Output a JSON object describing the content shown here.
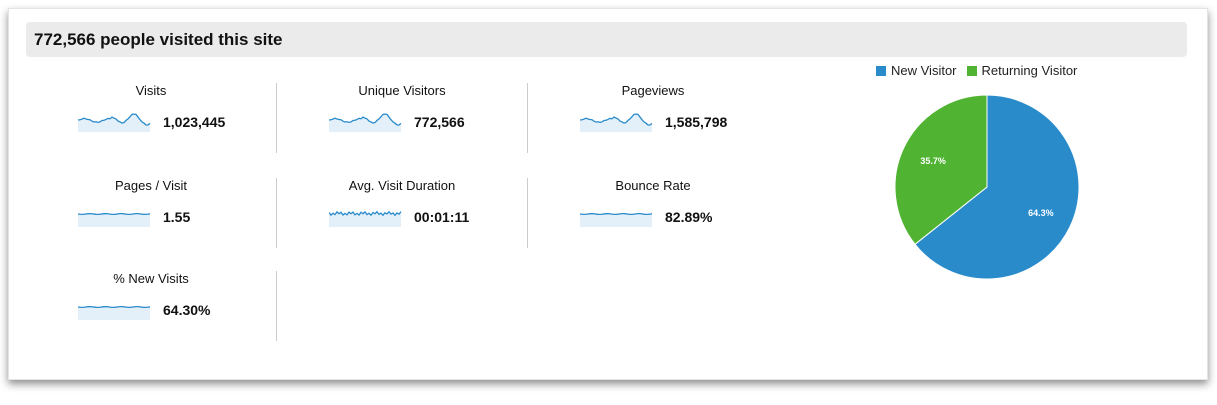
{
  "header": {
    "title": "772,566 people visited this site"
  },
  "metrics": [
    {
      "label": "Visits",
      "value": "1,023,445",
      "trend": "wavy"
    },
    {
      "label": "Unique Visitors",
      "value": "772,566",
      "trend": "wavy"
    },
    {
      "label": "Pageviews",
      "value": "1,585,798",
      "trend": "wavy"
    },
    {
      "label": "Pages / Visit",
      "value": "1.55",
      "trend": "flat"
    },
    {
      "label": "Avg. Visit Duration",
      "value": "00:01:11",
      "trend": "jagged"
    },
    {
      "label": "Bounce Rate",
      "value": "82.89%",
      "trend": "flat"
    },
    {
      "label": "% New Visits",
      "value": "64.30%",
      "trend": "flat"
    }
  ],
  "chart_data": {
    "type": "pie",
    "legend_position": "top",
    "slices": [
      {
        "name": "New Visitor",
        "value": 64.3,
        "label": "64.3%",
        "color": "#2a8bcb"
      },
      {
        "name": "Returning Visitor",
        "value": 35.7,
        "label": "35.7%",
        "color": "#50b432"
      }
    ]
  }
}
